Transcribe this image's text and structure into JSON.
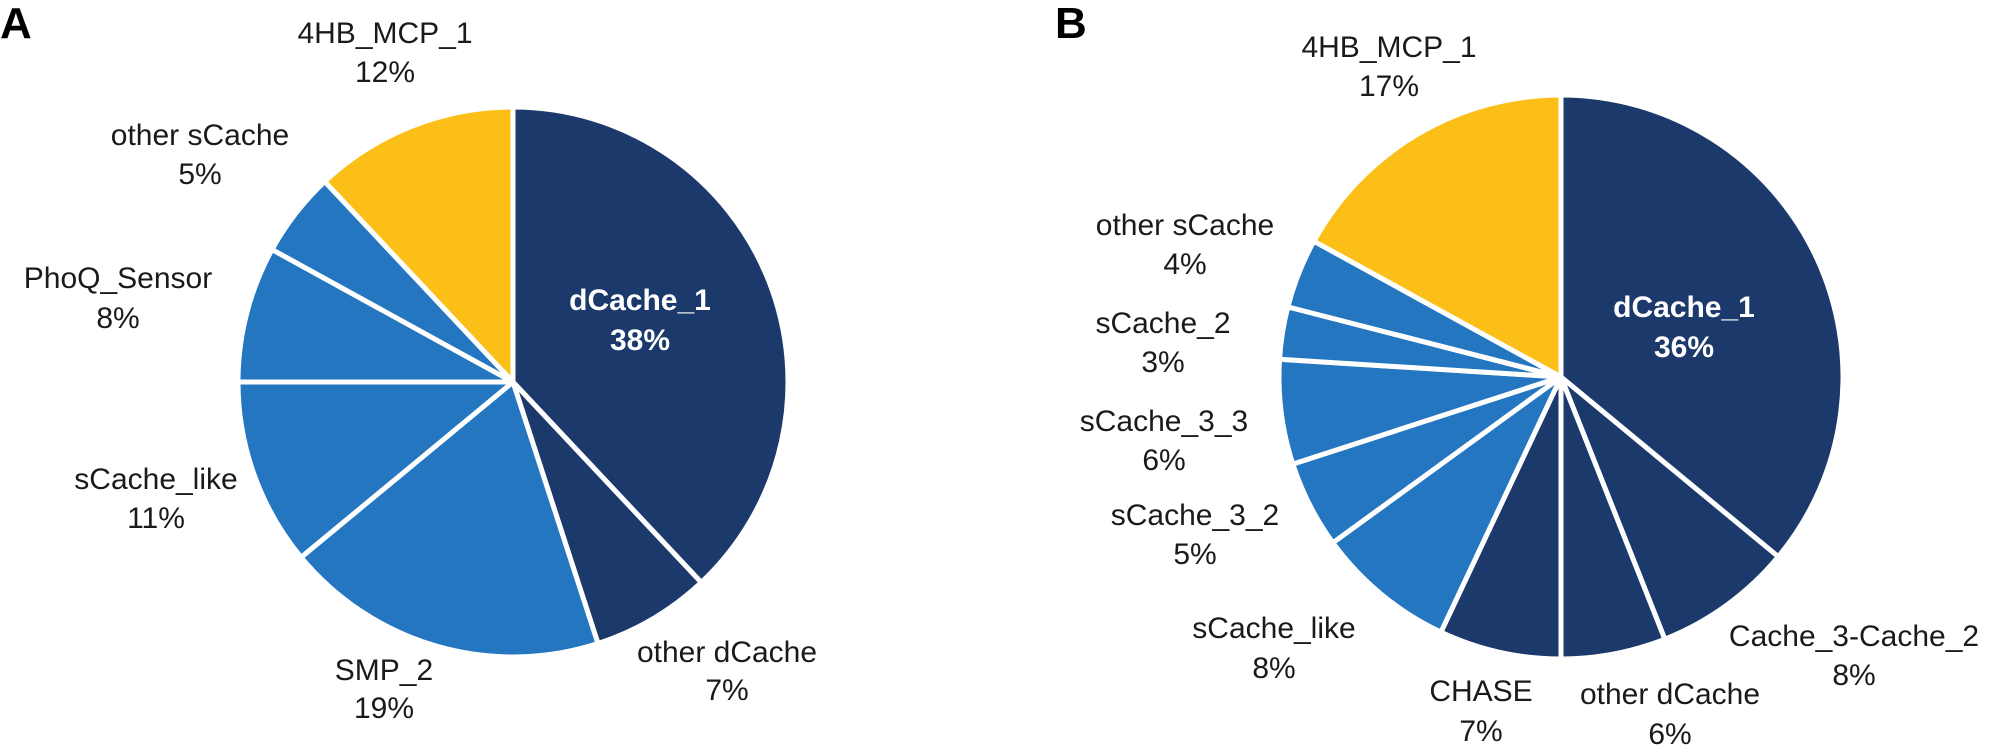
{
  "chart_data": [
    {
      "type": "pie",
      "panel": "A",
      "slices": [
        {
          "name": "dCache_1",
          "value": 38,
          "label": "38%",
          "color": "#1b3a6b",
          "label_inside": true
        },
        {
          "name": "other dCache",
          "value": 7,
          "label": "7%",
          "color": "#1b3a6b",
          "label_inside": false
        },
        {
          "name": "SMP_2",
          "value": 19,
          "label": "19%",
          "color": "#2476c0",
          "label_inside": false
        },
        {
          "name": "sCache_like",
          "value": 11,
          "label": "11%",
          "color": "#2476c0",
          "label_inside": false
        },
        {
          "name": "PhoQ_Sensor",
          "value": 8,
          "label": "8%",
          "color": "#2476c0",
          "label_inside": false
        },
        {
          "name": "other sCache",
          "value": 5,
          "label": "5%",
          "color": "#2476c0",
          "label_inside": false
        },
        {
          "name": "4HB_MCP_1",
          "value": 12,
          "label": "12%",
          "color": "#fbbf18",
          "label_inside": false
        }
      ]
    },
    {
      "type": "pie",
      "panel": "B",
      "slices": [
        {
          "name": "dCache_1",
          "value": 36,
          "label": "36%",
          "color": "#1b3a6b",
          "label_inside": true
        },
        {
          "name": "Cache_3-Cache_2",
          "value": 8,
          "label": "8%",
          "color": "#1b3a6b",
          "label_inside": false
        },
        {
          "name": "other dCache",
          "value": 6,
          "label": "6%",
          "color": "#1b3a6b",
          "label_inside": false
        },
        {
          "name": "CHASE",
          "value": 7,
          "label": "7%",
          "color": "#1b3a6b",
          "label_inside": false
        },
        {
          "name": "sCache_like",
          "value": 8,
          "label": "8%",
          "color": "#2476c0",
          "label_inside": false
        },
        {
          "name": "sCache_3_2",
          "value": 5,
          "label": "5%",
          "color": "#2476c0",
          "label_inside": false
        },
        {
          "name": "sCache_3_3",
          "value": 6,
          "label": "6%",
          "color": "#2476c0",
          "label_inside": false
        },
        {
          "name": "sCache_2",
          "value": 3,
          "label": "3%",
          "color": "#2476c0",
          "label_inside": false
        },
        {
          "name": "other sCache",
          "value": 4,
          "label": "4%",
          "color": "#2476c0",
          "label_inside": false
        },
        {
          "name": "4HB_MCP_1",
          "value": 17,
          "label": "17%",
          "color": "#fbbf18",
          "label_inside": false
        }
      ]
    }
  ]
}
